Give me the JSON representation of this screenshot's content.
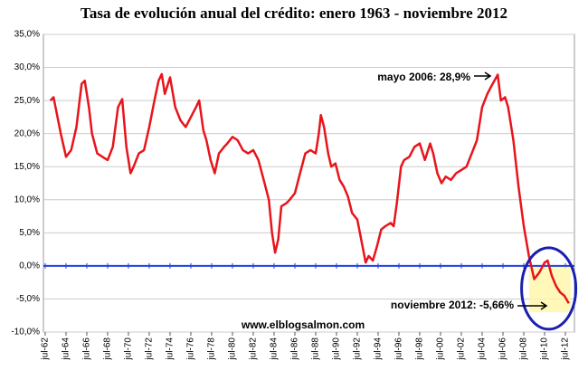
{
  "chart_data": {
    "type": "line",
    "title": "Tasa de evolución anual del crédito: enero 1963 - noviembre 2012",
    "x": [
      1963.0,
      1963.3,
      1964.0,
      1964.5,
      1965.0,
      1965.5,
      1966.0,
      1966.3,
      1966.7,
      1967.0,
      1967.5,
      1968.0,
      1968.5,
      1969.0,
      1969.5,
      1969.9,
      1970.3,
      1970.7,
      1971.0,
      1971.5,
      1972.0,
      1972.5,
      1973.0,
      1973.4,
      1973.7,
      1974.0,
      1974.5,
      1975.0,
      1975.5,
      1976.0,
      1976.5,
      1977.0,
      1977.3,
      1977.7,
      1978.0,
      1978.4,
      1978.8,
      1979.2,
      1979.7,
      1980.0,
      1980.5,
      1981.0,
      1981.5,
      1982.0,
      1982.5,
      1983.0,
      1983.5,
      1984.0,
      1984.3,
      1984.6,
      1984.9,
      1985.2,
      1985.7,
      1986.0,
      1986.5,
      1987.0,
      1987.5,
      1988.0,
      1988.5,
      1988.8,
      1989.0,
      1989.3,
      1989.7,
      1990.0,
      1990.4,
      1990.8,
      1991.2,
      1991.6,
      1992.0,
      1992.5,
      1993.0,
      1993.3,
      1993.6,
      1994.0,
      1994.4,
      1994.8,
      1995.2,
      1995.7,
      1996.0,
      1996.3,
      1996.7,
      1997.0,
      1997.5,
      1998.0,
      1998.5,
      1999.0,
      1999.5,
      1999.8,
      2000.2,
      2000.6,
      2001.0,
      2001.5,
      2002.0,
      2002.5,
      2003.0,
      2003.5,
      2004.0,
      2004.5,
      2005.0,
      2005.5,
      2006.0,
      2006.3,
      2006.7,
      2007.0,
      2007.5,
      2008.0,
      2008.5,
      2009.0,
      2009.5,
      2010.0,
      2010.5,
      2010.8,
      2011.2,
      2011.6,
      2012.0,
      2012.4,
      2012.83
    ],
    "series": [
      {
        "color": "#e8141b",
        "values": [
          25,
          25.5,
          20,
          16.5,
          17.5,
          21,
          27.5,
          28,
          24,
          20,
          17,
          16.5,
          16,
          18,
          24,
          25.2,
          18,
          14,
          15,
          17,
          17.5,
          21,
          25,
          28,
          29,
          26,
          28.5,
          24,
          22,
          21,
          22.5,
          24,
          25,
          20.5,
          19,
          16,
          14,
          17,
          18,
          18.5,
          19.5,
          19,
          17.5,
          17,
          17.5,
          16,
          13,
          10,
          5,
          2,
          4,
          9,
          9.5,
          10,
          11,
          14,
          17,
          17.5,
          17,
          20,
          22.8,
          21,
          17,
          15,
          15.5,
          13,
          12,
          10.5,
          8,
          7,
          3,
          0.5,
          1.5,
          0.8,
          3,
          5.5,
          6,
          6.5,
          6,
          9.5,
          15,
          16,
          16.5,
          18,
          18.5,
          16,
          18.5,
          17,
          14,
          12.5,
          13.5,
          13,
          14,
          14.5,
          15,
          17,
          19,
          24,
          26,
          27.5,
          28.9,
          25,
          25.5,
          24,
          19,
          12,
          6,
          1.5,
          -2,
          -1,
          0.5,
          0.8,
          -1.5,
          -3,
          -4,
          -4.5,
          -5.66
        ]
      }
    ],
    "xlim": [
      1962.33,
      2013.37
    ],
    "xticks": [
      {
        "value": 1962.5,
        "label": "jul-62"
      },
      {
        "value": 1964.5,
        "label": "jul-64"
      },
      {
        "value": 1966.5,
        "label": "jul-66"
      },
      {
        "value": 1968.5,
        "label": "jul-68"
      },
      {
        "value": 1970.5,
        "label": "jul-70"
      },
      {
        "value": 1972.5,
        "label": "jul-72"
      },
      {
        "value": 1974.5,
        "label": "jul-74"
      },
      {
        "value": 1976.5,
        "label": "jul-76"
      },
      {
        "value": 1978.5,
        "label": "jul-78"
      },
      {
        "value": 1980.5,
        "label": "jul-80"
      },
      {
        "value": 1982.5,
        "label": "jul-82"
      },
      {
        "value": 1984.5,
        "label": "jul-84"
      },
      {
        "value": 1986.5,
        "label": "jul-86"
      },
      {
        "value": 1988.5,
        "label": "jul-88"
      },
      {
        "value": 1990.5,
        "label": "jul-90"
      },
      {
        "value": 1992.5,
        "label": "jul-92"
      },
      {
        "value": 1994.5,
        "label": "jul-94"
      },
      {
        "value": 1996.5,
        "label": "jul-96"
      },
      {
        "value": 1998.5,
        "label": "jul-98"
      },
      {
        "value": 2000.5,
        "label": "jul-00"
      },
      {
        "value": 2002.5,
        "label": "jul-02"
      },
      {
        "value": 2004.5,
        "label": "jul-04"
      },
      {
        "value": 2006.5,
        "label": "jul-06"
      },
      {
        "value": 2008.5,
        "label": "jul-08"
      },
      {
        "value": 2010.5,
        "label": "jul-10"
      },
      {
        "value": 2012.5,
        "label": "jul-12"
      }
    ],
    "ylim": [
      -10,
      35
    ],
    "yticks": [
      {
        "value": -10,
        "label": "-10,0%"
      },
      {
        "value": -5,
        "label": "-5,0%"
      },
      {
        "value": 0,
        "label": "0,0%"
      },
      {
        "value": 5,
        "label": "5,0%"
      },
      {
        "value": 10,
        "label": "10,0%"
      },
      {
        "value": 15,
        "label": "15,0%"
      },
      {
        "value": 20,
        "label": "20,0%"
      },
      {
        "value": 25,
        "label": "25,0%"
      },
      {
        "value": 30,
        "label": "30,0%"
      },
      {
        "value": 35,
        "label": "35,0%"
      }
    ],
    "grid": true,
    "annotations": [
      "mayo 2006: 28,9%",
      "noviembre 2012: -5,66%",
      "www.elblogsalmon.com"
    ]
  }
}
